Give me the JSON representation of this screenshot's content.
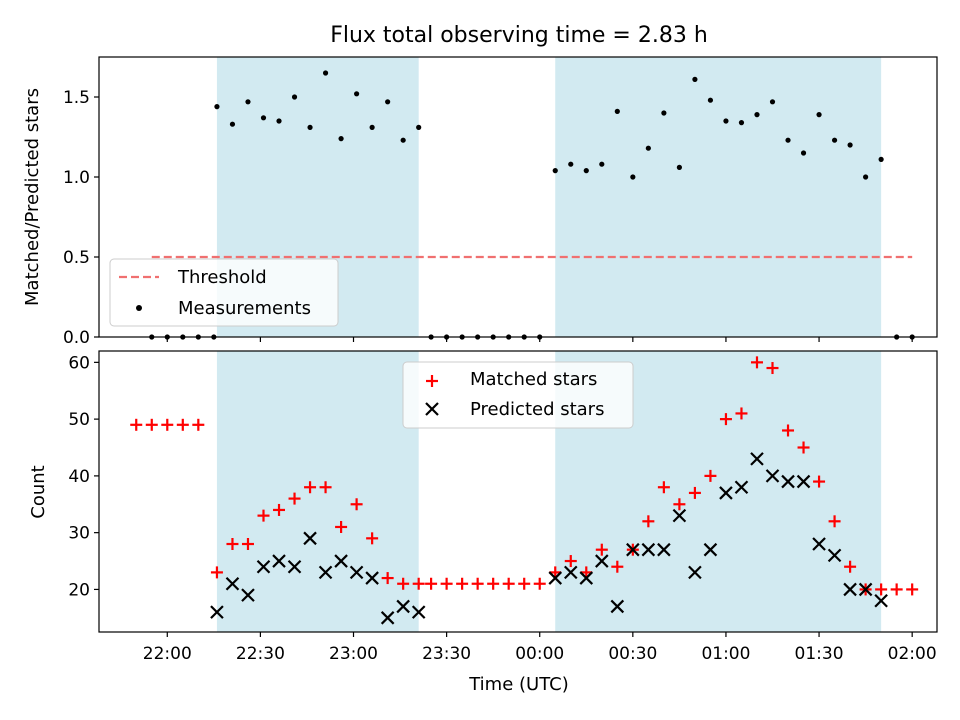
{
  "chart_data": [
    {
      "type": "scatter",
      "title": "Flux total observing time = 2.83 h",
      "xlabel": "",
      "ylabel": "Matched/Predicted stars",
      "ylim": [
        0,
        1.75
      ],
      "xlim": [
        "21:38",
        "02:08"
      ],
      "yticks": [
        "0.0",
        "0.5",
        "1.0",
        "1.5"
      ],
      "grid": false,
      "legend_position": "lower-left",
      "shaded_intervals": [
        [
          "22:16",
          "23:21"
        ],
        [
          "00:05",
          "01:50"
        ]
      ],
      "shade_color": "#add8e6",
      "threshold": {
        "name": "Threshold",
        "value": 0.5,
        "x_range": [
          "21:55",
          "02:00"
        ],
        "color": "#f07070",
        "style": "dashed"
      },
      "series": [
        {
          "name": "Measurements",
          "marker": "dot",
          "color": "#000000",
          "points": [
            [
              "21:55",
              0
            ],
            [
              "22:00",
              0
            ],
            [
              "22:05",
              0
            ],
            [
              "22:10",
              0
            ],
            [
              "22:15",
              0
            ],
            [
              "22:16",
              1.44
            ],
            [
              "22:21",
              1.33
            ],
            [
              "22:26",
              1.47
            ],
            [
              "22:31",
              1.37
            ],
            [
              "22:36",
              1.35
            ],
            [
              "22:41",
              1.5
            ],
            [
              "22:46",
              1.31
            ],
            [
              "22:51",
              1.65
            ],
            [
              "22:56",
              1.24
            ],
            [
              "23:01",
              1.52
            ],
            [
              "23:06",
              1.31
            ],
            [
              "23:11",
              1.47
            ],
            [
              "23:16",
              1.23
            ],
            [
              "23:21",
              1.31
            ],
            [
              "23:25",
              0
            ],
            [
              "23:30",
              0
            ],
            [
              "23:35",
              0
            ],
            [
              "23:40",
              0
            ],
            [
              "23:45",
              0
            ],
            [
              "23:50",
              0
            ],
            [
              "23:55",
              0
            ],
            [
              "00:00",
              0
            ],
            [
              "00:05",
              1.04
            ],
            [
              "00:10",
              1.08
            ],
            [
              "00:15",
              1.04
            ],
            [
              "00:20",
              1.08
            ],
            [
              "00:25",
              1.41
            ],
            [
              "00:30",
              1.0
            ],
            [
              "00:35",
              1.18
            ],
            [
              "00:40",
              1.4
            ],
            [
              "00:45",
              1.06
            ],
            [
              "00:50",
              1.61
            ],
            [
              "00:55",
              1.48
            ],
            [
              "01:00",
              1.35
            ],
            [
              "01:05",
              1.34
            ],
            [
              "01:10",
              1.39
            ],
            [
              "01:15",
              1.47
            ],
            [
              "01:20",
              1.23
            ],
            [
              "01:25",
              1.15
            ],
            [
              "01:30",
              1.39
            ],
            [
              "01:35",
              1.23
            ],
            [
              "01:40",
              1.2
            ],
            [
              "01:45",
              1.0
            ],
            [
              "01:50",
              1.11
            ],
            [
              "01:55",
              0
            ],
            [
              "02:00",
              0
            ]
          ]
        }
      ]
    },
    {
      "type": "scatter",
      "title": "",
      "xlabel": "Time (UTC)",
      "ylabel": "Count",
      "ylim": [
        12.5,
        62
      ],
      "xlim": [
        "21:38",
        "02:08"
      ],
      "yticks": [
        "20",
        "30",
        "40",
        "50",
        "60"
      ],
      "xticks": [
        "22:00",
        "22:30",
        "23:00",
        "23:30",
        "00:00",
        "00:30",
        "01:00",
        "01:30",
        "02:00"
      ],
      "grid": false,
      "legend_position": "upper-center",
      "shaded_intervals": [
        [
          "22:16",
          "23:21"
        ],
        [
          "00:05",
          "01:50"
        ]
      ],
      "shade_color": "#add8e6",
      "series": [
        {
          "name": "Matched stars",
          "marker": "plus",
          "color": "#ff0000",
          "points": [
            [
              "21:50",
              49
            ],
            [
              "21:55",
              49
            ],
            [
              "22:00",
              49
            ],
            [
              "22:05",
              49
            ],
            [
              "22:10",
              49
            ],
            [
              "22:16",
              23
            ],
            [
              "22:21",
              28
            ],
            [
              "22:26",
              28
            ],
            [
              "22:31",
              33
            ],
            [
              "22:36",
              34
            ],
            [
              "22:41",
              36
            ],
            [
              "22:46",
              38
            ],
            [
              "22:51",
              38
            ],
            [
              "22:56",
              31
            ],
            [
              "23:01",
              35
            ],
            [
              "23:06",
              29
            ],
            [
              "23:11",
              22
            ],
            [
              "23:16",
              21
            ],
            [
              "23:21",
              21
            ],
            [
              "23:25",
              21
            ],
            [
              "23:30",
              21
            ],
            [
              "23:35",
              21
            ],
            [
              "23:40",
              21
            ],
            [
              "23:45",
              21
            ],
            [
              "23:50",
              21
            ],
            [
              "23:55",
              21
            ],
            [
              "00:00",
              21
            ],
            [
              "00:05",
              23
            ],
            [
              "00:10",
              25
            ],
            [
              "00:15",
              23
            ],
            [
              "00:20",
              27
            ],
            [
              "00:25",
              24
            ],
            [
              "00:30",
              27
            ],
            [
              "00:35",
              32
            ],
            [
              "00:40",
              38
            ],
            [
              "00:45",
              35
            ],
            [
              "00:50",
              37
            ],
            [
              "00:55",
              40
            ],
            [
              "01:00",
              50
            ],
            [
              "01:05",
              51
            ],
            [
              "01:10",
              60
            ],
            [
              "01:15",
              59
            ],
            [
              "01:20",
              48
            ],
            [
              "01:25",
              45
            ],
            [
              "01:30",
              39
            ],
            [
              "01:35",
              32
            ],
            [
              "01:40",
              24
            ],
            [
              "01:45",
              20
            ],
            [
              "01:50",
              20
            ],
            [
              "01:55",
              20
            ],
            [
              "02:00",
              20
            ]
          ]
        },
        {
          "name": "Predicted stars",
          "marker": "x",
          "color": "#000000",
          "points": [
            [
              "22:16",
              16
            ],
            [
              "22:21",
              21
            ],
            [
              "22:26",
              19
            ],
            [
              "22:31",
              24
            ],
            [
              "22:36",
              25
            ],
            [
              "22:41",
              24
            ],
            [
              "22:46",
              29
            ],
            [
              "22:51",
              23
            ],
            [
              "22:56",
              25
            ],
            [
              "23:01",
              23
            ],
            [
              "23:06",
              22
            ],
            [
              "23:11",
              15
            ],
            [
              "23:16",
              17
            ],
            [
              "23:21",
              16
            ],
            [
              "00:05",
              22
            ],
            [
              "00:10",
              23
            ],
            [
              "00:15",
              22
            ],
            [
              "00:20",
              25
            ],
            [
              "00:25",
              17
            ],
            [
              "00:30",
              27
            ],
            [
              "00:35",
              27
            ],
            [
              "00:40",
              27
            ],
            [
              "00:45",
              33
            ],
            [
              "00:50",
              23
            ],
            [
              "00:55",
              27
            ],
            [
              "01:00",
              37
            ],
            [
              "01:05",
              38
            ],
            [
              "01:10",
              43
            ],
            [
              "01:15",
              40
            ],
            [
              "01:20",
              39
            ],
            [
              "01:25",
              39
            ],
            [
              "01:30",
              28
            ],
            [
              "01:35",
              26
            ],
            [
              "01:40",
              20
            ],
            [
              "01:45",
              20
            ],
            [
              "01:50",
              18
            ]
          ]
        }
      ]
    }
  ]
}
